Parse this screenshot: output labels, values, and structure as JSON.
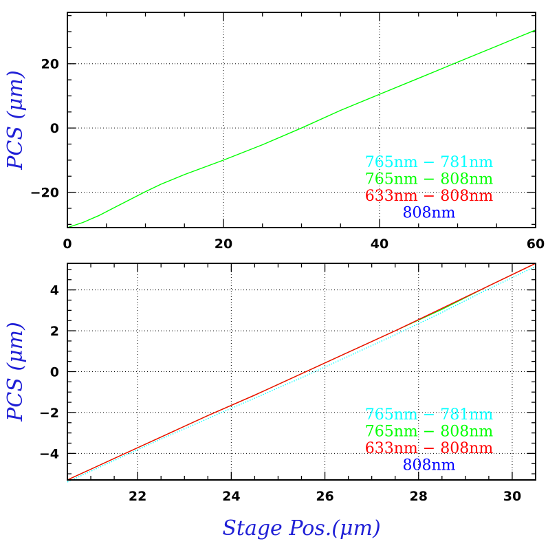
{
  "chart_data": [
    {
      "type": "line",
      "ylabel": "PCS (μm)",
      "xlim": [
        0,
        60
      ],
      "ylim": [
        -31,
        36
      ],
      "xticks": [
        0,
        20,
        40,
        60
      ],
      "yticks": [
        -20,
        0,
        20
      ],
      "grid": true,
      "legend_position": "bottom-right",
      "legend": [
        {
          "label": "765nm  −  781nm",
          "color": "#00ffff"
        },
        {
          "label": "765nm  −  808nm",
          "color": "#00ff00"
        },
        {
          "label": "633nm  −  808nm",
          "color": "#ff0000"
        },
        {
          "label": "808nm",
          "color": "#0000ff"
        }
      ],
      "series": [
        {
          "color": "#00ff00",
          "x": [
            0,
            2,
            4,
            6,
            8,
            10,
            12,
            15,
            20,
            25,
            30,
            35,
            40,
            45,
            50,
            55,
            60
          ],
          "y": [
            -31,
            -29.4,
            -27.3,
            -24.8,
            -22.3,
            -19.8,
            -17.5,
            -14.5,
            -10.0,
            -5.2,
            0,
            5.5,
            10.5,
            15.5,
            20.5,
            25.5,
            30.5
          ]
        }
      ]
    },
    {
      "type": "line",
      "xlabel": "Stage Pos.(μm)",
      "ylabel": "PCS (μm)",
      "xlim": [
        20.5,
        30.5
      ],
      "ylim": [
        -5.3,
        5.3
      ],
      "xticks": [
        22,
        24,
        26,
        28,
        30
      ],
      "yticks": [
        -4,
        -2,
        0,
        2,
        4
      ],
      "grid": true,
      "legend_position": "bottom-right",
      "legend": [
        {
          "label": "765nm  −  781nm",
          "color": "#00ffff"
        },
        {
          "label": "765nm  −  808nm",
          "color": "#00ff00"
        },
        {
          "label": "633nm  −  808nm",
          "color": "#ff0000"
        },
        {
          "label": "808nm",
          "color": "#0000ff"
        }
      ],
      "series": [
        {
          "color": "#00ffff",
          "x": [
            20.5,
            21.5,
            22.5,
            23.5,
            24.5,
            25.5,
            26.5,
            27.5,
            28.5,
            29.5,
            30.5
          ],
          "y": [
            -5.4,
            -4.35,
            -3.3,
            -2.3,
            -1.3,
            -0.3,
            0.75,
            1.8,
            2.9,
            4.05,
            5.15
          ]
        },
        {
          "color": "#00ff00",
          "x": [
            20.5,
            21.5,
            22.5,
            23.5,
            24.5,
            25.5,
            26.5,
            27.5,
            28.5,
            29.5,
            30.5
          ],
          "y": [
            -5.3,
            -4.25,
            -3.2,
            -2.15,
            -1.15,
            -0.1,
            0.95,
            2.0,
            3.05,
            4.2,
            5.3
          ]
        },
        {
          "color": "#ff0000",
          "x": [
            20.5,
            21.5,
            22.5,
            23.5,
            24.5,
            25.5,
            26.5,
            27.5,
            28.5,
            29.5,
            30.5
          ],
          "y": [
            -5.3,
            -4.25,
            -3.2,
            -2.15,
            -1.15,
            -0.1,
            0.95,
            2.0,
            3.1,
            4.2,
            5.3
          ]
        }
      ]
    }
  ]
}
